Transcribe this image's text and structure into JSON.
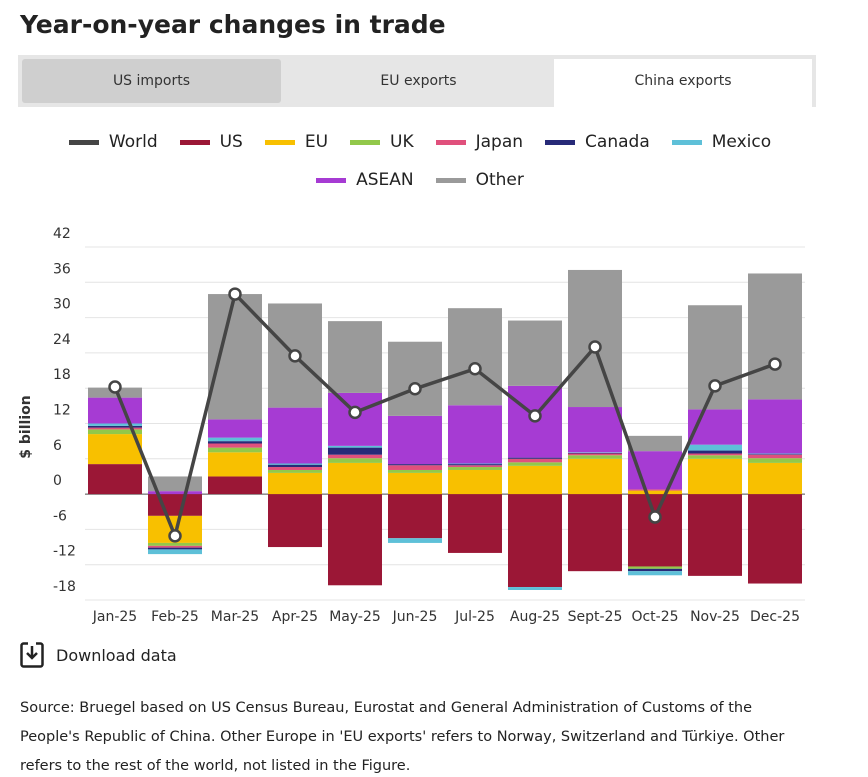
{
  "chart_data": {
    "type": "bar",
    "title": "Year-on-year changes in trade",
    "y_label": "$ billion",
    "categories": [
      "Jan-25",
      "Feb-25",
      "Mar-25",
      "Apr-25",
      "May-25",
      "Jun-25",
      "Jul-25",
      "Aug-25",
      "Sept-25",
      "Oct-25",
      "Nov-25",
      "Dec-25"
    ],
    "ylim": [
      -18,
      42
    ],
    "yticks": [
      -18,
      -12,
      -6,
      0,
      6,
      12,
      18,
      24,
      30,
      36,
      42
    ],
    "grid": true,
    "stacked": true,
    "series": [
      {
        "name": "World",
        "type": "line",
        "color": "#454545",
        "values": [
          18.2,
          -7.1,
          34.0,
          23.5,
          13.9,
          17.9,
          21.3,
          13.3,
          25.0,
          -3.9,
          18.4,
          22.1
        ]
      },
      {
        "name": "US",
        "color": "#9b1736",
        "values": [
          5.1,
          -3.7,
          3.0,
          -9.0,
          -15.5,
          -7.5,
          -10.0,
          -15.8,
          -13.1,
          -12.3,
          -13.9,
          -15.2
        ]
      },
      {
        "name": "EU",
        "color": "#f8c000",
        "values": [
          5.1,
          -4.6,
          4.1,
          3.6,
          5.3,
          3.6,
          4.1,
          4.8,
          6.0,
          0.6,
          6.0,
          5.3
        ]
      },
      {
        "name": "UK",
        "color": "#92c84a",
        "values": [
          0.8,
          -0.5,
          0.8,
          0.5,
          0.8,
          0.5,
          0.5,
          0.6,
          0.6,
          -0.4,
          0.6,
          0.8
        ]
      },
      {
        "name": "Japan",
        "color": "#e0507c",
        "values": [
          0.3,
          -0.3,
          0.7,
          0.5,
          0.6,
          0.8,
          0.3,
          0.6,
          0.3,
          0.2,
          0.3,
          0.6
        ]
      },
      {
        "name": "Canada",
        "color": "#272a78",
        "values": [
          0.3,
          -0.3,
          0.4,
          0.4,
          1.2,
          0.2,
          0.2,
          0.2,
          0.1,
          -0.4,
          0.5,
          0.1
        ]
      },
      {
        "name": "Mexico",
        "color": "#5ec0d8",
        "values": [
          0.4,
          -0.8,
          0.6,
          0.2,
          0.3,
          -0.8,
          0.1,
          -0.5,
          0.1,
          -0.7,
          1.0,
          0.1
        ]
      },
      {
        "name": "ASEAN",
        "color": "#a63bd3",
        "values": [
          4.4,
          0.5,
          3.1,
          9.5,
          9.0,
          8.2,
          9.9,
          12.2,
          7.7,
          6.5,
          6.0,
          9.2
        ]
      },
      {
        "name": "Other",
        "color": "#9a9a9a",
        "values": [
          1.7,
          2.5,
          21.3,
          17.7,
          12.2,
          12.6,
          16.5,
          11.1,
          23.3,
          2.6,
          17.7,
          21.4
        ]
      }
    ]
  },
  "tabs": [
    "US imports",
    "EU exports",
    "China exports"
  ],
  "download": "Download data",
  "source": "Source: Bruegel based on US Census Bureau, Eurostat and General Administration of Customs of the People's Republic of China. Other Europe in 'EU exports' refers to Norway, Switzerland and Türkiye. Other refers to the rest of the world, not listed in the Figure."
}
